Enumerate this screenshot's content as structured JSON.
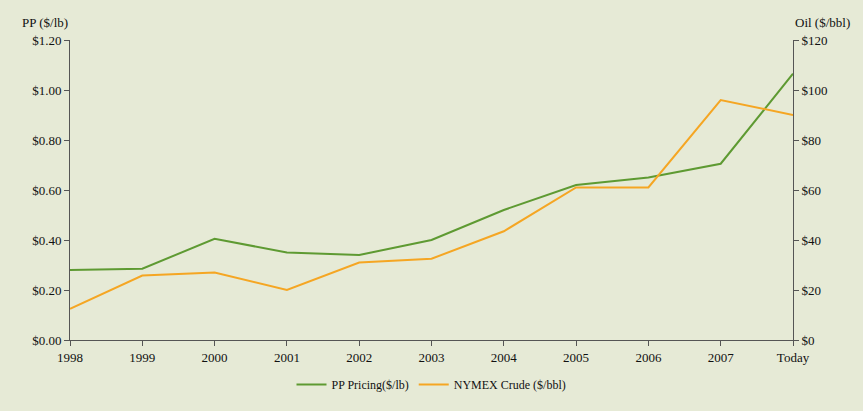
{
  "chart_data": {
    "type": "line",
    "y_label": "PP ($/lb)",
    "y2_label": "Oil ($/bbl)",
    "categories": [
      "1998",
      "1999",
      "2000",
      "2001",
      "2002",
      "2003",
      "2004",
      "2005",
      "2006",
      "2007",
      "Today"
    ],
    "series": [
      {
        "name": "PP Pricing($/lb)",
        "color": "#5e9a32",
        "axis": "y",
        "values": [
          0.28,
          0.285,
          0.405,
          0.35,
          0.34,
          0.4,
          0.52,
          0.62,
          0.65,
          0.705,
          1.065
        ]
      },
      {
        "name": "NYMEX Crude ($/bbl)",
        "color": "#f5a623",
        "axis": "y2",
        "values": [
          12.5,
          25.8,
          27,
          20,
          31,
          32.5,
          43.5,
          61,
          61,
          96,
          90
        ]
      }
    ],
    "ylim": [
      0,
      1.2
    ],
    "yticks": [
      {
        "value": 0,
        "label": "$0.00"
      },
      {
        "value": 0.2,
        "label": "$0.20"
      },
      {
        "value": 0.4,
        "label": "$0.40"
      },
      {
        "value": 0.6,
        "label": "$0.60"
      },
      {
        "value": 0.8,
        "label": "$0.80"
      },
      {
        "value": 1.0,
        "label": "$1.00"
      },
      {
        "value": 1.2,
        "label": "$1.20"
      }
    ],
    "y2lim": [
      0,
      120
    ],
    "y2ticks": [
      {
        "value": 0,
        "label": "$0"
      },
      {
        "value": 20,
        "label": "$20"
      },
      {
        "value": 40,
        "label": "$40"
      },
      {
        "value": 60,
        "label": "$60"
      },
      {
        "value": 80,
        "label": "$80"
      },
      {
        "value": 100,
        "label": "$100"
      },
      {
        "value": 120,
        "label": "$120"
      }
    ],
    "grid": false,
    "legend": "bottom"
  }
}
